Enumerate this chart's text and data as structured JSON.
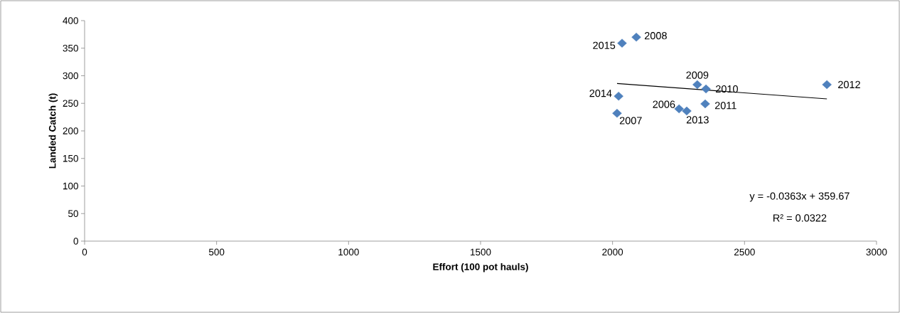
{
  "chart_data": {
    "type": "scatter",
    "xlabel": "Effort (100 pot hauls)",
    "ylabel": "Landed Catch (t)",
    "xlim": [
      0,
      3000
    ],
    "xticks": [
      0,
      500,
      1000,
      1500,
      2000,
      2500,
      3000
    ],
    "ylim": [
      0,
      400
    ],
    "yticks": [
      0,
      50,
      100,
      150,
      200,
      250,
      300,
      350,
      400
    ],
    "marker": "diamond",
    "grid": false,
    "series": [
      {
        "color": "#4f81bd",
        "x": [
          2252,
          2017,
          2090,
          2321,
          2354,
          2351,
          2812,
          2281,
          2023,
          2036
        ],
        "values": [
          240,
          232,
          370,
          284,
          276,
          249,
          284,
          236,
          263,
          359
        ]
      },
      {
        "type": "line",
        "color": "#000000",
        "marker": "none",
        "line_style": "solid",
        "x": [
          2017,
          2812
        ],
        "values": [
          286,
          258
        ]
      }
    ],
    "annotations": [
      {
        "text": "2006",
        "x": 2252,
        "y": 240
      },
      {
        "text": "2007",
        "x": 2017,
        "y": 232
      },
      {
        "text": "2008",
        "x": 2090,
        "y": 370
      },
      {
        "text": "2009",
        "x": 2321,
        "y": 284
      },
      {
        "text": "2010",
        "x": 2354,
        "y": 276
      },
      {
        "text": "2011",
        "x": 2351,
        "y": 249
      },
      {
        "text": "2012",
        "x": 2812,
        "y": 284
      },
      {
        "text": "2013",
        "x": 2281,
        "y": 236
      },
      {
        "text": "2014",
        "x": 2023,
        "y": 263
      },
      {
        "text": "2015",
        "x": 2036,
        "y": 359
      },
      "y = -0.0363x + 359.67",
      "R² = 0.0322"
    ]
  }
}
